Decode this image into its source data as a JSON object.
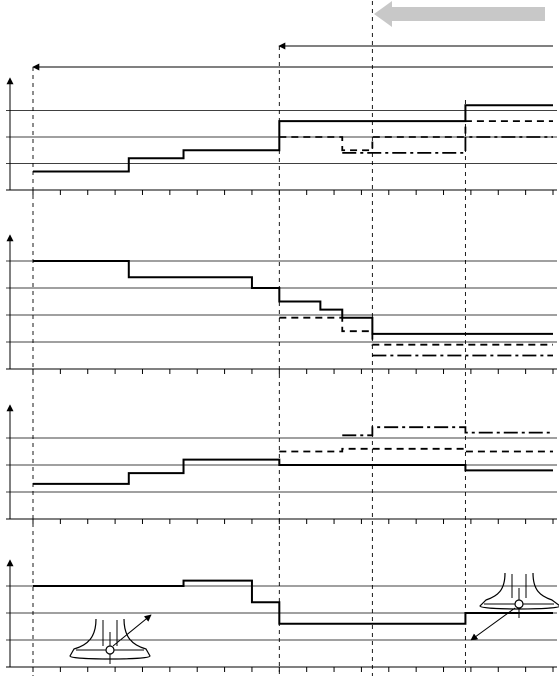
{
  "figure": {
    "time_steps": 19,
    "panels": [
      {
        "id": "panel-1",
        "series": [
          {
            "style": "solid",
            "values": [
              [
                0,
                3.5,
                0.7
              ],
              [
                3.5,
                5.5,
                1.2
              ],
              [
                5.5,
                9,
                1.5
              ],
              [
                9,
                12.4,
                2.6
              ],
              [
                12.4,
                15.8,
                2.6
              ],
              [
                15.8,
                19,
                3.2
              ]
            ]
          },
          {
            "style": "dashed",
            "values": [
              [
                9,
                11.3,
                2.0
              ],
              [
                11.3,
                12.4,
                1.5
              ],
              [
                12.4,
                15.8,
                2.0
              ],
              [
                15.8,
                19,
                2.6
              ]
            ]
          },
          {
            "style": "dash-dot",
            "values": [
              [
                11.3,
                12.4,
                1.4
              ],
              [
                12.4,
                15.8,
                1.4
              ],
              [
                15.8,
                19,
                2.0
              ]
            ]
          }
        ]
      },
      {
        "id": "panel-2",
        "series": [
          {
            "style": "solid",
            "values": [
              [
                0,
                3.5,
                4.0
              ],
              [
                3.5,
                8,
                3.4
              ],
              [
                8,
                9,
                3.0
              ],
              [
                9,
                10.5,
                2.5
              ],
              [
                10.5,
                11.3,
                2.2
              ],
              [
                11.3,
                12.4,
                1.9
              ],
              [
                12.4,
                19,
                1.3
              ]
            ]
          },
          {
            "style": "dashed",
            "values": [
              [
                9,
                11.3,
                1.9
              ],
              [
                11.3,
                12.4,
                1.4
              ],
              [
                12.4,
                19,
                0.9
              ]
            ]
          },
          {
            "style": "dash-dot",
            "values": [
              [
                12.4,
                19,
                0.5
              ]
            ]
          }
        ]
      },
      {
        "id": "panel-3",
        "series": [
          {
            "style": "solid",
            "values": [
              [
                0,
                3.5,
                1.3
              ],
              [
                3.5,
                5.5,
                1.7
              ],
              [
                5.5,
                9,
                2.2
              ],
              [
                9,
                15.8,
                2.0
              ],
              [
                15.8,
                19,
                1.8
              ]
            ]
          },
          {
            "style": "dashed",
            "values": [
              [
                9,
                11.3,
                2.5
              ],
              [
                11.3,
                12.4,
                2.6
              ],
              [
                12.4,
                15.8,
                2.6
              ],
              [
                15.8,
                19,
                2.5
              ]
            ]
          },
          {
            "style": "dash-dot",
            "values": [
              [
                11.3,
                12.4,
                3.1
              ],
              [
                12.4,
                15.8,
                3.4
              ],
              [
                15.8,
                19,
                3.2
              ]
            ]
          }
        ]
      },
      {
        "id": "panel-4",
        "series": [
          {
            "style": "solid",
            "values": [
              [
                0,
                5.5,
                3.0
              ],
              [
                5.5,
                8,
                3.2
              ],
              [
                8,
                9,
                2.4
              ],
              [
                9,
                15.8,
                1.6
              ],
              [
                15.8,
                19,
                2.0
              ]
            ]
          }
        ]
      }
    ],
    "events": [
      0,
      9,
      12.4,
      15.8
    ],
    "legend_icons": [
      "tire-contact-icon",
      "tire-contact-icon"
    ]
  }
}
